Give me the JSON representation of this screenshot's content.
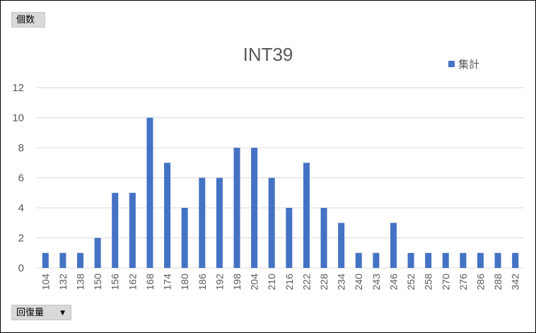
{
  "pivot": {
    "values_field": "個数",
    "axis_field": "回復量",
    "axis_dropdown": "▼"
  },
  "colors": {
    "bar": "#4472C4",
    "grid": "#d9d9d9",
    "text": "#595959"
  },
  "chart_data": {
    "type": "bar",
    "title": "INT39",
    "xlabel": "",
    "ylabel": "",
    "ylim": [
      0,
      12
    ],
    "yticks": [
      0,
      2,
      4,
      6,
      8,
      10,
      12
    ],
    "grid": true,
    "legend_position": "top-right",
    "categories": [
      "104",
      "132",
      "138",
      "150",
      "156",
      "162",
      "168",
      "174",
      "180",
      "186",
      "192",
      "198",
      "204",
      "210",
      "216",
      "222",
      "228",
      "234",
      "240",
      "243",
      "246",
      "252",
      "258",
      "270",
      "276",
      "286",
      "288",
      "342"
    ],
    "series": [
      {
        "name": "集計",
        "values": [
          1,
          1,
          1,
          2,
          5,
          5,
          10,
          7,
          4,
          6,
          6,
          8,
          8,
          6,
          4,
          7,
          4,
          3,
          1,
          1,
          3,
          1,
          1,
          1,
          1,
          1,
          1,
          1
        ]
      }
    ]
  }
}
